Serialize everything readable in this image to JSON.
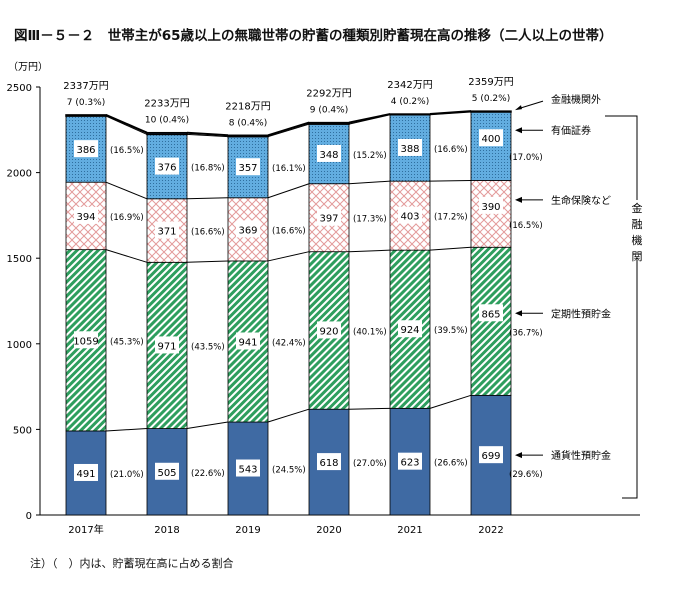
{
  "title": "図Ⅲ－５－２　世帯主が65歳以上の無職世帯の貯蓄の種類別貯蓄現在高の推移（二人以上の世帯）",
  "note": "注）（　）内は、貯蓄現在高に占める割合",
  "chart_data": {
    "type": "bar",
    "stacked": true,
    "ylabel": "（万円）",
    "ylim": [
      0,
      2500
    ],
    "yticks": [
      0,
      500,
      1000,
      1500,
      2000,
      2500
    ],
    "categories": [
      "2017年",
      "2018",
      "2019",
      "2020",
      "2021",
      "2022"
    ],
    "totals": [
      "2337万円",
      "2233万円",
      "2218万円",
      "2292万円",
      "2342万円",
      "2359万円"
    ],
    "series": [
      {
        "name": "通貨性預貯金",
        "color": "#3f6aa3",
        "values": [
          491,
          505,
          543,
          618,
          623,
          699
        ],
        "pct": [
          "(21.0%)",
          "(22.6%)",
          "(24.5%)",
          "(27.0%)",
          "(26.6%)",
          "(29.6%)"
        ]
      },
      {
        "name": "定期性預貯金",
        "color": "#2e9e5e",
        "values": [
          1059,
          971,
          941,
          920,
          924,
          865
        ],
        "pct": [
          "(45.3%)",
          "(43.5%)",
          "(42.4%)",
          "(40.1%)",
          "(39.5%)",
          "(36.7%)"
        ]
      },
      {
        "name": "生命保険など",
        "color": "#e8a0a0",
        "values": [
          394,
          371,
          369,
          397,
          403,
          390
        ],
        "pct": [
          "(16.9%)",
          "(16.6%)",
          "(16.6%)",
          "(17.3%)",
          "(17.2%)",
          "(16.5%)"
        ]
      },
      {
        "name": "有価証券",
        "color": "#5aa8d8",
        "values": [
          386,
          376,
          357,
          348,
          388,
          400
        ],
        "pct": [
          "(16.5%)",
          "(16.8%)",
          "(16.1%)",
          "(15.2%)",
          "(16.6%)",
          "(17.0%)"
        ]
      },
      {
        "name": "金融機関外",
        "color": "#1f3c66",
        "values": [
          7,
          10,
          8,
          9,
          4,
          5
        ],
        "pct": [
          "(0.3%)",
          "(0.4%)",
          "(0.4%)",
          "(0.4%)",
          "(0.2%)",
          "(0.2%)"
        ]
      }
    ],
    "bracket_label": "金融機関",
    "grid": false
  }
}
